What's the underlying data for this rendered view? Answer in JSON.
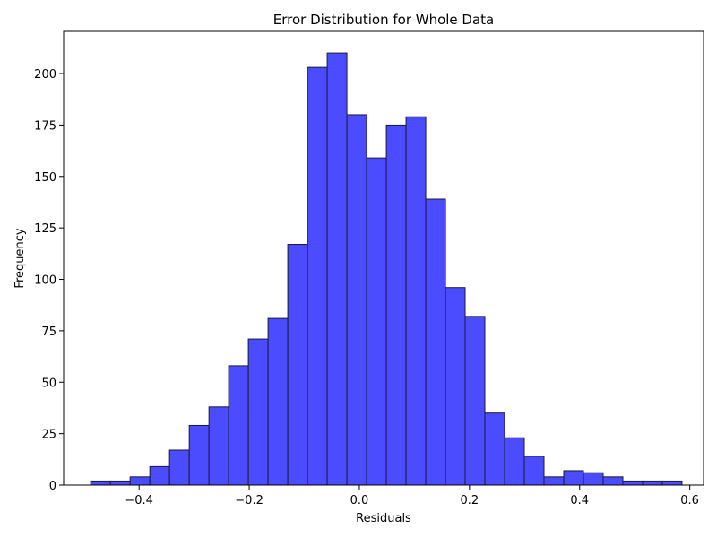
{
  "chart_data": {
    "type": "bar",
    "title": "Error Distribution for Whole Data",
    "xlabel": "Residuals",
    "ylabel": "Frequency",
    "xlim": [
      -0.537,
      0.625
    ],
    "ylim": [
      0,
      220.5
    ],
    "grid": false,
    "legend": "none",
    "bar_color": "#4b4bff",
    "bar_edge_color": "#1a1a3a",
    "x_ticks": [
      {
        "value": -0.4,
        "label": "−0.4"
      },
      {
        "value": -0.2,
        "label": "−0.2"
      },
      {
        "value": 0.0,
        "label": "0.0"
      },
      {
        "value": 0.2,
        "label": "0.2"
      },
      {
        "value": 0.4,
        "label": "0.4"
      },
      {
        "value": 0.6,
        "label": "0.6"
      }
    ],
    "y_ticks": [
      {
        "value": 0,
        "label": "0"
      },
      {
        "value": 25,
        "label": "25"
      },
      {
        "value": 50,
        "label": "50"
      },
      {
        "value": 75,
        "label": "75"
      },
      {
        "value": 100,
        "label": "100"
      },
      {
        "value": 125,
        "label": "125"
      },
      {
        "value": 150,
        "label": "150"
      },
      {
        "value": 175,
        "label": "175"
      },
      {
        "value": 200,
        "label": "200"
      }
    ],
    "bins": [
      {
        "x0": -0.4879,
        "x1": -0.4521,
        "value": 2
      },
      {
        "x0": -0.4521,
        "x1": -0.4163,
        "value": 2
      },
      {
        "x0": -0.4163,
        "x1": -0.3805,
        "value": 4
      },
      {
        "x0": -0.3805,
        "x1": -0.3447,
        "value": 9
      },
      {
        "x0": -0.3447,
        "x1": -0.3089,
        "value": 17
      },
      {
        "x0": -0.3089,
        "x1": -0.2731,
        "value": 29
      },
      {
        "x0": -0.2731,
        "x1": -0.2374,
        "value": 38
      },
      {
        "x0": -0.2374,
        "x1": -0.2016,
        "value": 58
      },
      {
        "x0": -0.2016,
        "x1": -0.1658,
        "value": 71
      },
      {
        "x0": -0.1658,
        "x1": -0.13,
        "value": 81
      },
      {
        "x0": -0.13,
        "x1": -0.0942,
        "value": 117
      },
      {
        "x0": -0.0942,
        "x1": -0.0584,
        "value": 203
      },
      {
        "x0": -0.0584,
        "x1": -0.0226,
        "value": 210
      },
      {
        "x0": -0.0226,
        "x1": 0.0132,
        "value": 180
      },
      {
        "x0": 0.0132,
        "x1": 0.049,
        "value": 159
      },
      {
        "x0": 0.049,
        "x1": 0.0848,
        "value": 175
      },
      {
        "x0": 0.0848,
        "x1": 0.1206,
        "value": 179
      },
      {
        "x0": 0.1206,
        "x1": 0.1564,
        "value": 139
      },
      {
        "x0": 0.1564,
        "x1": 0.1921,
        "value": 96
      },
      {
        "x0": 0.1921,
        "x1": 0.2279,
        "value": 82
      },
      {
        "x0": 0.2279,
        "x1": 0.2637,
        "value": 35
      },
      {
        "x0": 0.2637,
        "x1": 0.2995,
        "value": 23
      },
      {
        "x0": 0.2995,
        "x1": 0.3353,
        "value": 14
      },
      {
        "x0": 0.3353,
        "x1": 0.3711,
        "value": 4
      },
      {
        "x0": 0.3711,
        "x1": 0.4069,
        "value": 7
      },
      {
        "x0": 0.4069,
        "x1": 0.4427,
        "value": 6
      },
      {
        "x0": 0.4427,
        "x1": 0.4785,
        "value": 4
      },
      {
        "x0": 0.4785,
        "x1": 0.5143,
        "value": 2
      },
      {
        "x0": 0.5143,
        "x1": 0.55,
        "value": 2
      },
      {
        "x0": 0.55,
        "x1": 0.5858,
        "value": 2
      }
    ]
  }
}
